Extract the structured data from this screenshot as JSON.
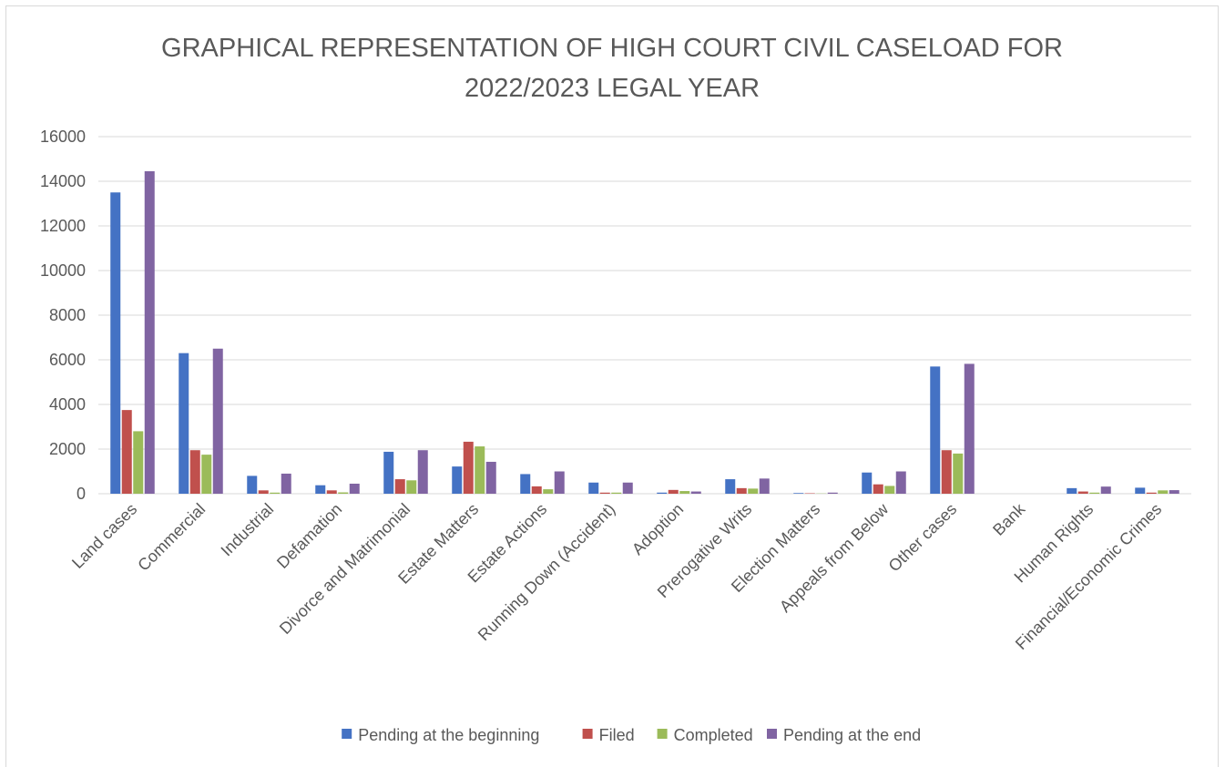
{
  "chart_data": {
    "type": "bar",
    "title": "GRAPHICAL REPRESENTATION OF HIGH COURT CIVIL CASELOAD FOR 2022/2023 LEGAL YEAR",
    "categories": [
      "Land cases",
      "Commercial",
      "Industrial",
      "Defamation",
      "Divorce and Matrimonial",
      "Estate Matters",
      "Estate Actions",
      "Running Down (Accident)",
      "Adoption",
      "Prerogative Writs",
      "Election Matters",
      "Appeals from Below",
      "Other cases",
      "Bank",
      "Human Rights",
      "Financial/Economic Crimes"
    ],
    "series": [
      {
        "name": "Pending at the beginning",
        "color": "#4472c4",
        "values": [
          13500,
          6300,
          800,
          380,
          1880,
          1220,
          880,
          500,
          50,
          650,
          30,
          950,
          5700,
          0,
          250,
          270
        ]
      },
      {
        "name": "Filed",
        "color": "#c0504d",
        "values": [
          3750,
          1950,
          150,
          150,
          650,
          2330,
          330,
          50,
          170,
          250,
          20,
          420,
          1950,
          0,
          100,
          50
        ]
      },
      {
        "name": "Completed",
        "color": "#9bbb59",
        "values": [
          2800,
          1750,
          50,
          60,
          600,
          2120,
          200,
          50,
          120,
          230,
          10,
          350,
          1800,
          0,
          50,
          150
        ]
      },
      {
        "name": "Pending at the end",
        "color": "#8064a2",
        "values": [
          14450,
          6500,
          900,
          450,
          1950,
          1430,
          1000,
          500,
          100,
          680,
          50,
          1000,
          5820,
          0,
          320,
          160
        ]
      }
    ],
    "ylim": [
      0,
      16000
    ],
    "yticks": [
      0,
      2000,
      4000,
      6000,
      8000,
      10000,
      12000,
      14000,
      16000
    ],
    "grid": true,
    "legend": "bottom"
  }
}
